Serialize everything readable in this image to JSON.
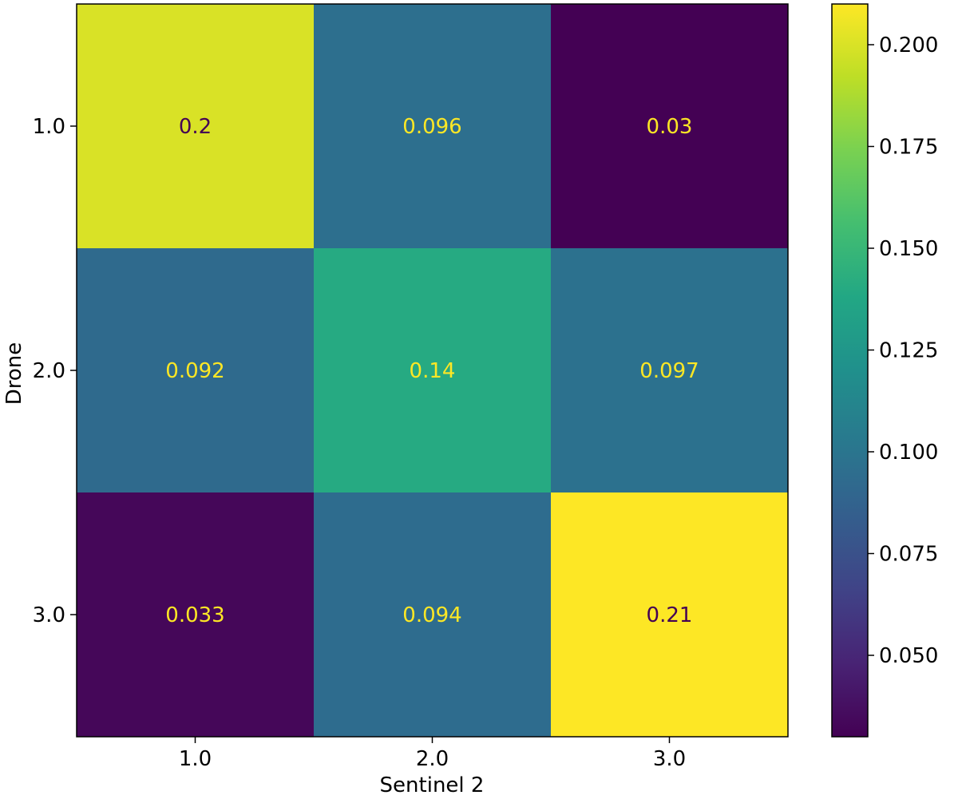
{
  "chart_data": {
    "type": "heatmap",
    "title": "",
    "xlabel": "Sentinel 2",
    "ylabel": "Drone",
    "x_categories": [
      "1.0",
      "2.0",
      "3.0"
    ],
    "y_categories": [
      "1.0",
      "2.0",
      "3.0"
    ],
    "values": [
      [
        0.2,
        0.096,
        0.03
      ],
      [
        0.092,
        0.14,
        0.097
      ],
      [
        0.033,
        0.094,
        0.21
      ]
    ],
    "cell_labels": [
      [
        "0.2",
        "0.096",
        "0.03"
      ],
      [
        "0.092",
        "0.14",
        "0.097"
      ],
      [
        "0.033",
        "0.094",
        "0.21"
      ]
    ],
    "colormap": "viridis",
    "color_range": [
      0.03,
      0.21
    ],
    "colorbar_ticks": [
      {
        "value": 0.05,
        "label": "0.050"
      },
      {
        "value": 0.075,
        "label": "0.075"
      },
      {
        "value": 0.1,
        "label": "0.100"
      },
      {
        "value": 0.125,
        "label": "0.125"
      },
      {
        "value": 0.15,
        "label": "0.150"
      },
      {
        "value": 0.175,
        "label": "0.175"
      },
      {
        "value": 0.2,
        "label": "0.200"
      }
    ],
    "colorbar_placement": "right",
    "grid": false
  }
}
